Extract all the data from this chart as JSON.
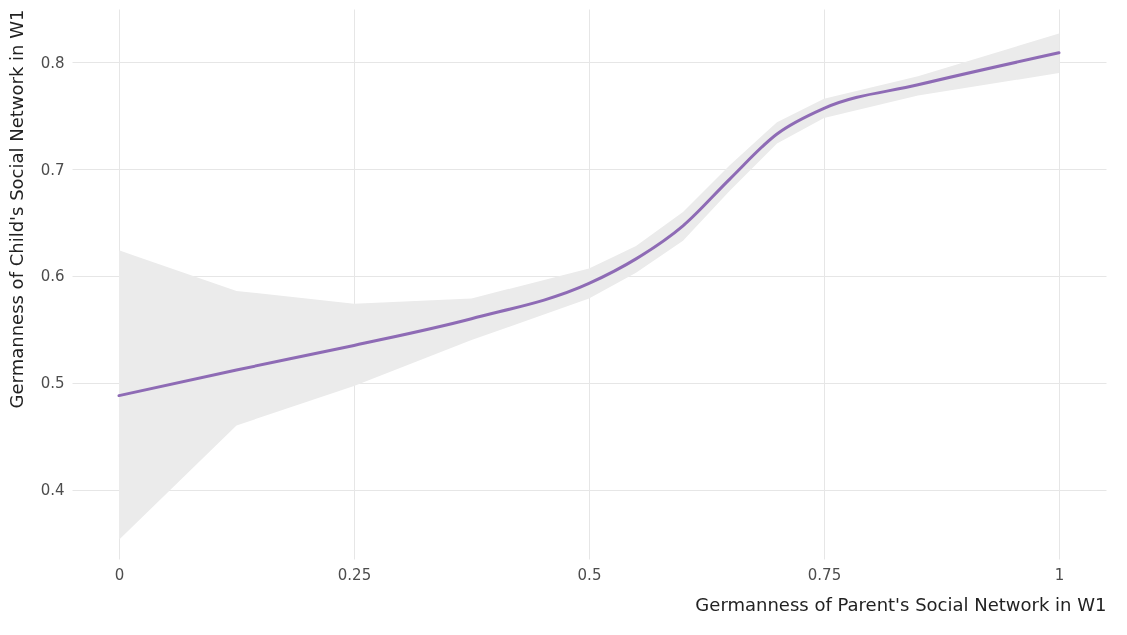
{
  "chart_data": {
    "type": "line",
    "xlabel": "Germanness of Parent's Social Network in W1",
    "ylabel": "Germanness of Child's Social Network in W1",
    "xlim": [
      -0.05,
      1.05
    ],
    "ylim": [
      0.335,
      0.85
    ],
    "xticks": [
      0,
      0.25,
      0.5,
      0.75,
      1
    ],
    "yticks": [
      0.4,
      0.5,
      0.6,
      0.7,
      0.8
    ],
    "grid": true,
    "marker": "none",
    "line_style": "solid",
    "series": [
      {
        "color": "#8e6bb5",
        "x": [
          0,
          0.125,
          0.25,
          0.375,
          0.5,
          0.55,
          0.6,
          0.65,
          0.7,
          0.75,
          0.85,
          1
        ],
        "values": [
          0.488,
          0.512,
          0.535,
          0.56,
          0.593,
          0.616,
          0.647,
          0.691,
          0.733,
          0.757,
          0.779,
          0.809
        ],
        "lower": [
          0.353,
          0.46,
          0.497,
          0.54,
          0.579,
          0.603,
          0.633,
          0.68,
          0.724,
          0.748,
          0.769,
          0.79
        ],
        "upper": [
          0.624,
          0.586,
          0.574,
          0.579,
          0.607,
          0.628,
          0.66,
          0.704,
          0.744,
          0.766,
          0.787,
          0.827
        ]
      }
    ]
  }
}
